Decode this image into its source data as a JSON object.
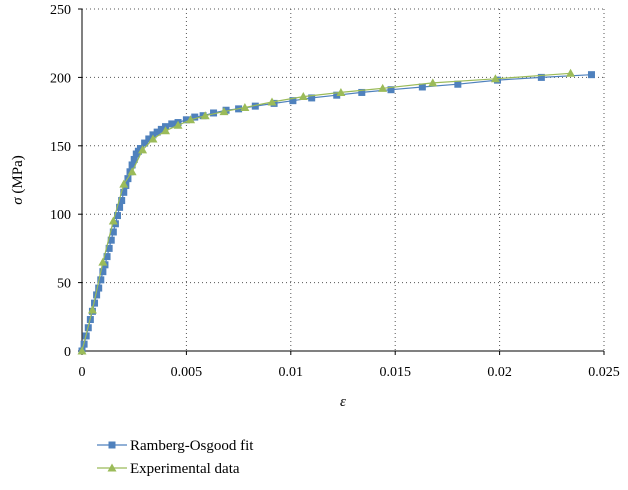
{
  "chart_data": {
    "type": "line",
    "xlabel": "ε",
    "ylabel_symbol": "σ",
    "ylabel_unit": " (MPa)",
    "xlim": [
      0,
      0.025
    ],
    "ylim": [
      0,
      250
    ],
    "x_ticks": [
      0,
      0.005,
      0.01,
      0.015,
      0.02,
      0.025
    ],
    "x_tick_labels": [
      "0",
      "0.005",
      "0.01",
      "0.015",
      "0.02",
      "0.025"
    ],
    "y_ticks": [
      0,
      50,
      100,
      150,
      200,
      250
    ],
    "y_tick_labels": [
      "0",
      "50",
      "100",
      "150",
      "200",
      "250"
    ],
    "grid": "dotted",
    "legend_position": "bottom-left",
    "series": [
      {
        "name": "Ramberg-Osgood fit",
        "color": "#4f81bd",
        "marker": "square",
        "x": [
          0,
          0.0001,
          0.0002,
          0.0003,
          0.0004,
          0.0005,
          0.0006,
          0.0007,
          0.0008,
          0.0009,
          0.001,
          0.0011,
          0.0012,
          0.0013,
          0.0014,
          0.0015,
          0.0016,
          0.0017,
          0.0018,
          0.0019,
          0.002,
          0.0021,
          0.0022,
          0.0023,
          0.0024,
          0.0025,
          0.0026,
          0.0027,
          0.0028,
          0.003,
          0.0032,
          0.0034,
          0.0036,
          0.0038,
          0.004,
          0.0043,
          0.0046,
          0.005,
          0.0054,
          0.0058,
          0.0063,
          0.0069,
          0.0075,
          0.0083,
          0.0092,
          0.0101,
          0.011,
          0.0122,
          0.0134,
          0.0148,
          0.0163,
          0.018,
          0.0199,
          0.022,
          0.0244
        ],
        "y": [
          0,
          5,
          11,
          17,
          23,
          29,
          35,
          41,
          46,
          52,
          58,
          63,
          69,
          75,
          81,
          87,
          93,
          99,
          105,
          110,
          116,
          121,
          126,
          131,
          136,
          140,
          144,
          146,
          148,
          152,
          155,
          158,
          160,
          162,
          164,
          166,
          167,
          169,
          171,
          172,
          174,
          176,
          177,
          179,
          181,
          183,
          185,
          187,
          189,
          191,
          193,
          195,
          198,
          200,
          202
        ]
      },
      {
        "name": "Experimental data",
        "color": "#9bbb59",
        "marker": "triangle",
        "x": [
          0,
          0.0005,
          0.001,
          0.0015,
          0.002,
          0.0024,
          0.0029,
          0.0034,
          0.004,
          0.0046,
          0.0052,
          0.0059,
          0.0068,
          0.0078,
          0.0091,
          0.0106,
          0.0124,
          0.0144,
          0.0168,
          0.0198,
          0.0234
        ],
        "y": [
          0,
          30,
          65,
          95,
          122,
          131,
          147,
          155,
          161,
          165,
          169,
          172,
          175,
          178,
          182,
          186,
          189,
          192,
          196,
          199,
          203
        ]
      }
    ]
  }
}
